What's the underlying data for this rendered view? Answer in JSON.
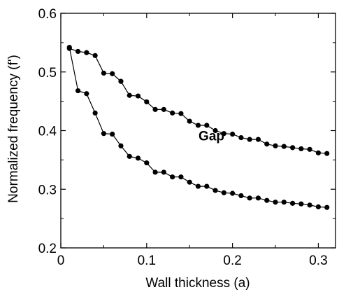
{
  "chart_data": {
    "type": "line",
    "title": "",
    "xlabel": "Wall thickness (a)",
    "ylabel": "Normalized frequency (f')",
    "xlim": [
      0,
      0.32
    ],
    "ylim": [
      0.2,
      0.6
    ],
    "xticks": [
      0,
      0.1,
      0.2,
      0.3
    ],
    "xtick_labels": [
      "0",
      "0.1",
      "0.2",
      "0.3"
    ],
    "yticks": [
      0.2,
      0.3,
      0.4,
      0.5,
      0.6
    ],
    "ytick_labels": [
      "0.2",
      "0.3",
      "0.4",
      "0.5",
      "0.6"
    ],
    "grid": false,
    "legend": "none",
    "annotations": [
      {
        "text": "Gap",
        "x": 0.1755,
        "y": 0.383
      }
    ],
    "series": [
      {
        "color": "#000000",
        "marker": "circle",
        "x": [
          0.01,
          0.02,
          0.03,
          0.04,
          0.05,
          0.06,
          0.07,
          0.08,
          0.09,
          0.1,
          0.11,
          0.12,
          0.13,
          0.14,
          0.15,
          0.16,
          0.17,
          0.18,
          0.19,
          0.2,
          0.21,
          0.22,
          0.23,
          0.24,
          0.25,
          0.26,
          0.27,
          0.28,
          0.29,
          0.3,
          0.31
        ],
        "y": [
          0.54,
          0.535,
          0.533,
          0.528,
          0.498,
          0.497,
          0.484,
          0.46,
          0.459,
          0.449,
          0.436,
          0.436,
          0.43,
          0.429,
          0.416,
          0.409,
          0.409,
          0.4,
          0.395,
          0.394,
          0.388,
          0.385,
          0.385,
          0.377,
          0.374,
          0.373,
          0.371,
          0.369,
          0.368,
          0.362,
          0.361
        ]
      },
      {
        "color": "#000000",
        "marker": "circle",
        "x": [
          0.01,
          0.02,
          0.03,
          0.04,
          0.05,
          0.06,
          0.07,
          0.08,
          0.09,
          0.1,
          0.11,
          0.12,
          0.13,
          0.14,
          0.15,
          0.16,
          0.17,
          0.18,
          0.19,
          0.2,
          0.21,
          0.22,
          0.23,
          0.24,
          0.25,
          0.26,
          0.27,
          0.28,
          0.29,
          0.3,
          0.31
        ],
        "y": [
          0.542,
          0.468,
          0.463,
          0.43,
          0.395,
          0.394,
          0.374,
          0.356,
          0.353,
          0.345,
          0.329,
          0.329,
          0.321,
          0.321,
          0.312,
          0.305,
          0.305,
          0.298,
          0.294,
          0.293,
          0.289,
          0.285,
          0.285,
          0.281,
          0.278,
          0.278,
          0.276,
          0.275,
          0.273,
          0.27,
          0.269
        ]
      }
    ]
  }
}
